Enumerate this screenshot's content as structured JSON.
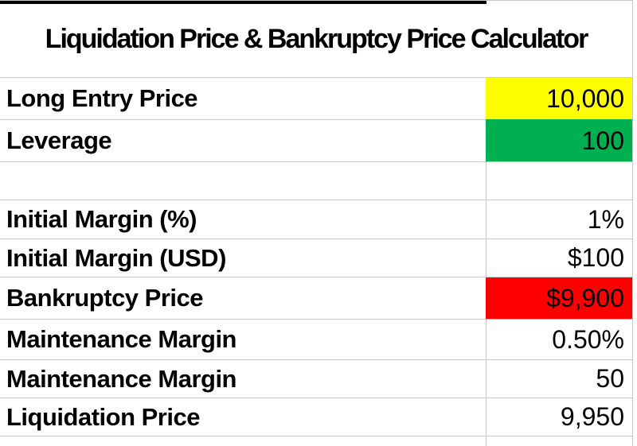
{
  "title": "Liquidation Price & Bankruptcy Price Calculator",
  "colors": {
    "yellow": "#FFFF00",
    "green": "#00B050",
    "red": "#FF0000",
    "gridline": "#C9C9C9",
    "title_top_border": "#000000",
    "text": "#000000"
  },
  "rows": [
    {
      "label": "Long Entry Price",
      "value": "10,000",
      "value_bg": "yellow"
    },
    {
      "label": "Leverage",
      "value": "100",
      "value_bg": "green"
    },
    {
      "label": "",
      "value": "",
      "value_bg": "none"
    },
    {
      "label": "Initial Margin (%)",
      "value": "1%",
      "value_bg": "none"
    },
    {
      "label": "Initial Margin (USD)",
      "value": "$100",
      "value_bg": "none"
    },
    {
      "label": "Bankruptcy Price",
      "value": "$9,900",
      "value_bg": "red"
    },
    {
      "label": "Maintenance Margin",
      "value": "0.50%",
      "value_bg": "none"
    },
    {
      "label": "Maintenance Margin",
      "value": "50",
      "value_bg": "none"
    },
    {
      "label": "Liquidation Price",
      "value": "9,950",
      "value_bg": "none"
    }
  ]
}
